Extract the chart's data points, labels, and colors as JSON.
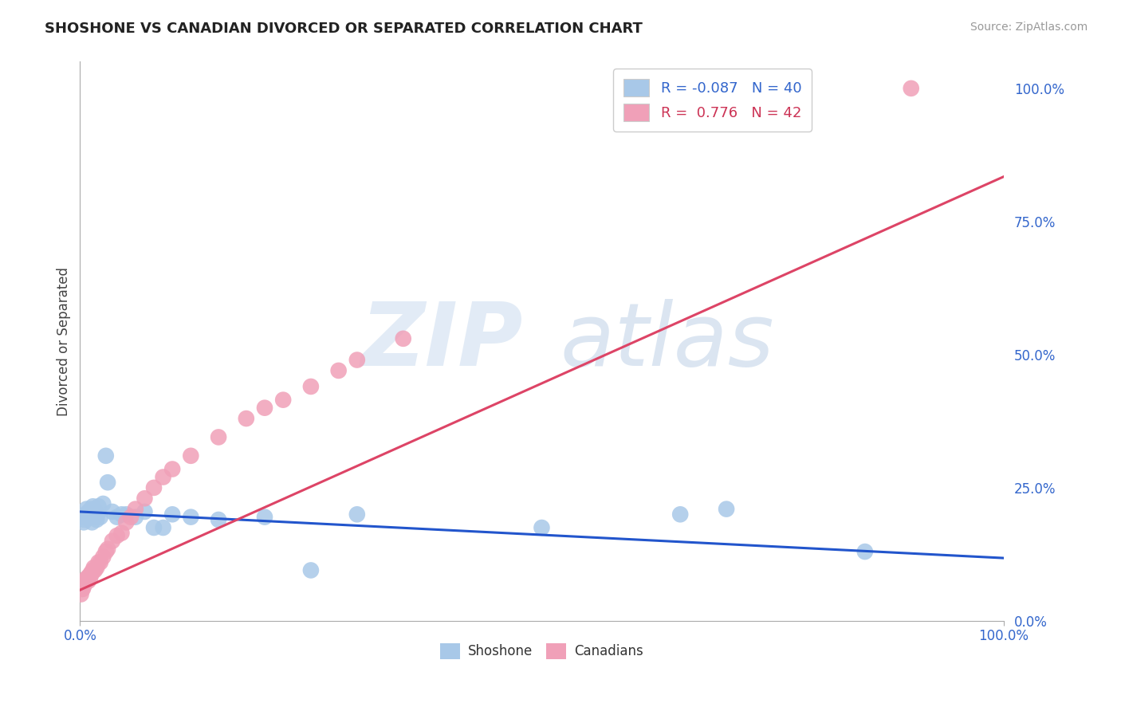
{
  "title": "SHOSHONE VS CANADIAN DIVORCED OR SEPARATED CORRELATION CHART",
  "source": "Source: ZipAtlas.com",
  "ylabel": "Divorced or Separated",
  "ytick_labels": [
    "0.0%",
    "25.0%",
    "50.0%",
    "75.0%",
    "100.0%"
  ],
  "ytick_values": [
    0.0,
    0.25,
    0.5,
    0.75,
    1.0
  ],
  "shoshone_color": "#a8c8e8",
  "canadian_color": "#f0a0b8",
  "shoshone_line_color": "#2255cc",
  "canadian_line_color": "#dd4466",
  "shoshone_x": [
    0.002,
    0.004,
    0.005,
    0.006,
    0.007,
    0.008,
    0.009,
    0.01,
    0.011,
    0.012,
    0.013,
    0.014,
    0.015,
    0.016,
    0.017,
    0.018,
    0.019,
    0.02,
    0.022,
    0.025,
    0.028,
    0.03,
    0.035,
    0.04,
    0.045,
    0.05,
    0.06,
    0.07,
    0.08,
    0.09,
    0.1,
    0.12,
    0.15,
    0.2,
    0.25,
    0.3,
    0.5,
    0.65,
    0.7,
    0.85
  ],
  "shoshone_y": [
    0.195,
    0.185,
    0.19,
    0.2,
    0.21,
    0.195,
    0.205,
    0.2,
    0.195,
    0.21,
    0.185,
    0.215,
    0.2,
    0.195,
    0.205,
    0.19,
    0.2,
    0.215,
    0.195,
    0.22,
    0.31,
    0.26,
    0.205,
    0.195,
    0.2,
    0.2,
    0.195,
    0.205,
    0.175,
    0.175,
    0.2,
    0.195,
    0.19,
    0.195,
    0.095,
    0.2,
    0.175,
    0.2,
    0.21,
    0.13
  ],
  "canadian_x": [
    0.001,
    0.002,
    0.003,
    0.004,
    0.005,
    0.006,
    0.007,
    0.008,
    0.009,
    0.01,
    0.011,
    0.012,
    0.013,
    0.014,
    0.015,
    0.016,
    0.018,
    0.02,
    0.022,
    0.025,
    0.028,
    0.03,
    0.035,
    0.04,
    0.045,
    0.05,
    0.055,
    0.06,
    0.07,
    0.08,
    0.09,
    0.1,
    0.12,
    0.15,
    0.18,
    0.2,
    0.22,
    0.25,
    0.28,
    0.3,
    0.35,
    0.9
  ],
  "canadian_y": [
    0.05,
    0.06,
    0.06,
    0.065,
    0.07,
    0.075,
    0.08,
    0.08,
    0.075,
    0.085,
    0.08,
    0.09,
    0.09,
    0.095,
    0.1,
    0.095,
    0.1,
    0.11,
    0.11,
    0.12,
    0.13,
    0.135,
    0.15,
    0.16,
    0.165,
    0.185,
    0.195,
    0.21,
    0.23,
    0.25,
    0.27,
    0.285,
    0.31,
    0.345,
    0.38,
    0.4,
    0.415,
    0.44,
    0.47,
    0.49,
    0.53,
    1.0
  ],
  "shoshone_slope": -0.087,
  "shoshone_intercept": 0.205,
  "canadian_slope": 0.776,
  "canadian_intercept": 0.058,
  "xlim": [
    0.0,
    1.0
  ],
  "ylim": [
    0.0,
    1.05
  ],
  "background_color": "#ffffff",
  "grid_color": "#cccccc"
}
